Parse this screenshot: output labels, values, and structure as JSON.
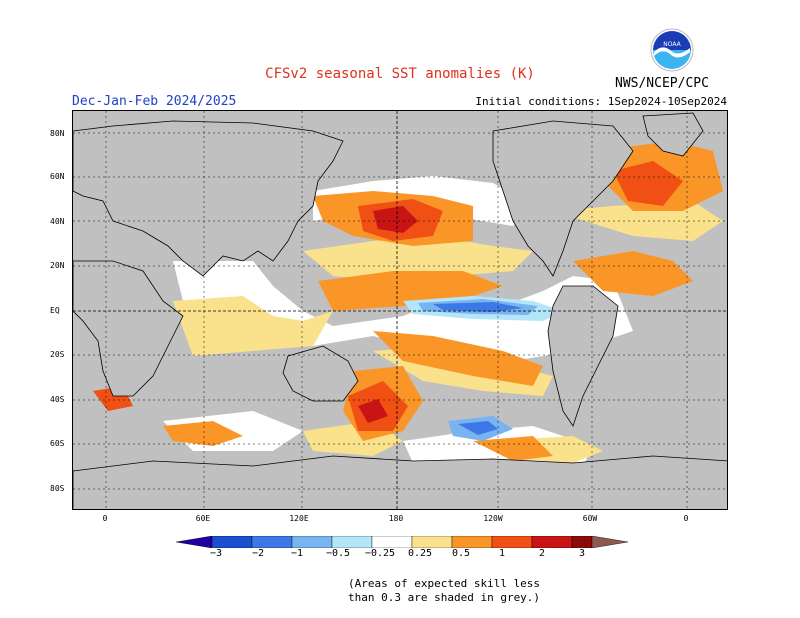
{
  "header": {
    "title": "CFSv2 seasonal SST anomalies (K)",
    "season": "Dec-Jan-Feb 2024/2025",
    "initial_conditions": "Initial conditions: 1Sep2024-10Sep2024",
    "agency": "NWS/NCEP/CPC",
    "logo_text": "NOAA"
  },
  "map": {
    "projection": "equirectangular",
    "center_longitude": 180,
    "lat_labels": [
      "80N",
      "60N",
      "40N",
      "20N",
      "EQ",
      "20S",
      "40S",
      "60S",
      "80S"
    ],
    "lon_labels": [
      "0",
      "60E",
      "120E",
      "180",
      "120W",
      "60W",
      "0"
    ],
    "land_color": "#c0c0c0",
    "low_skill_color": "#c0c0c0"
  },
  "colorbar": {
    "labels": [
      "−3",
      "−2",
      "−1",
      "−0.5",
      "−0.25",
      "0.25",
      "0.5",
      "1",
      "2",
      "3"
    ],
    "colors": [
      "#2000a0",
      "#1a50d0",
      "#3c78e6",
      "#78b4f0",
      "#b4e6fa",
      "#ffffff",
      "#fae18c",
      "#fa9628",
      "#f05014",
      "#c81414",
      "#8c0a0a",
      "#8c5a50"
    ]
  },
  "footnote": {
    "line1": "(Areas of expected skill less",
    "line2": "than 0.3 are shaded in grey.)"
  }
}
